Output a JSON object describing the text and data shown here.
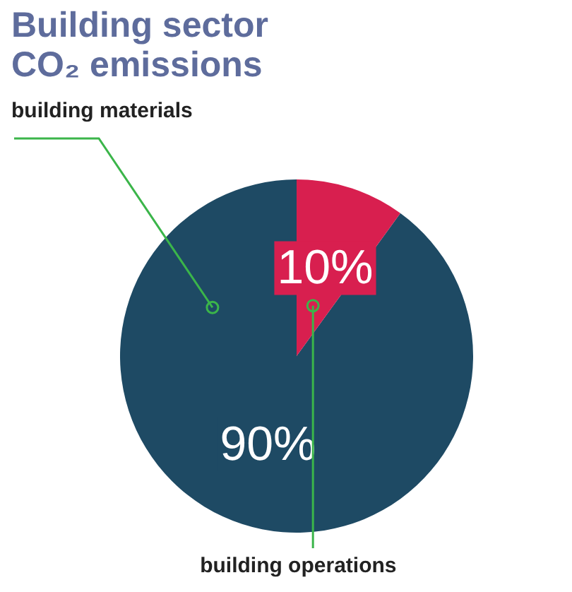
{
  "chart_data": {
    "type": "pie",
    "title": "Building sector\nCO₂ emissions",
    "categories": [
      "building materials",
      "building operations"
    ],
    "values": [
      90,
      10
    ],
    "colors": [
      "#1e4a64",
      "#d81f4f"
    ],
    "value_labels": [
      "90%",
      "10%"
    ],
    "legend": false
  }
}
